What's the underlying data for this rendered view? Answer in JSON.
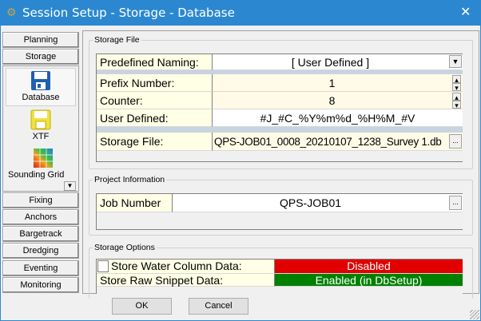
{
  "window": {
    "title": "Session Setup - Storage -  Database",
    "icon": "gear-icon",
    "close": "close-icon"
  },
  "nav": {
    "top": [
      "Planning",
      "Storage"
    ],
    "storage_items": [
      {
        "label": "Database",
        "icon": "floppy-blue-icon",
        "selected": true
      },
      {
        "label": "XTF",
        "icon": "floppy-yellow-icon"
      },
      {
        "label": "Sounding Grid",
        "icon": "grid-colormap-icon"
      }
    ],
    "bottom": [
      "Fixing",
      "Anchors",
      "Bargetrack",
      "Dredging",
      "Eventing",
      "Monitoring"
    ]
  },
  "storage_file": {
    "legend": "Storage File",
    "predefined_label": "Predefined Naming:",
    "predefined_value": "[ User Defined ]",
    "prefix_label": "Prefix Number:",
    "prefix_value": "1",
    "counter_label": "Counter:",
    "counter_value": "8",
    "user_label": "User Defined:",
    "user_value": "#J_#C_%Y%m%d_%H%M_#V",
    "file_label": "Storage File:",
    "file_value": "QPS-JOB01_0008_20210107_1238_Survey 1.db",
    "browse": "..."
  },
  "project": {
    "legend": "Project Information",
    "job_label": "Job Number",
    "job_value": "QPS-JOB01",
    "browse": "..."
  },
  "options": {
    "legend": "Storage Options",
    "wc_label": "Store Water Column Data:",
    "wc_value": "Disabled",
    "wc_checked": false,
    "wc_color": "#e00000",
    "snip_label": "Store Raw Snippet Data:",
    "snip_value": "Enabled (in DbSetup)",
    "snip_color": "#008000"
  },
  "buttons": {
    "ok": "OK",
    "cancel": "Cancel"
  }
}
